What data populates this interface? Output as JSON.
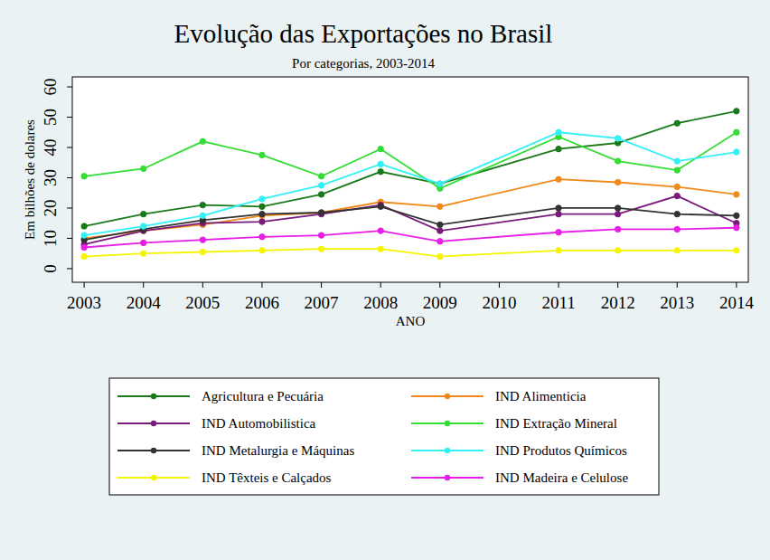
{
  "chart_data": {
    "type": "line",
    "title": "Evolução das Exportações no Brasil",
    "subtitle": "Por categorias, 2003-2014",
    "x_label": "ANO",
    "y_label": "Em bilhões de dolares",
    "x": [
      2003,
      2004,
      2005,
      2006,
      2007,
      2008,
      2009,
      2011,
      2012,
      2013,
      2014
    ],
    "xlim": [
      2002.8,
      2014.2
    ],
    "xticks": [
      2003,
      2004,
      2005,
      2006,
      2007,
      2008,
      2009,
      2010,
      2011,
      2012,
      2013,
      2014
    ],
    "ylim": [
      -4.5,
      63.3
    ],
    "yticks": [
      0,
      10,
      20,
      30,
      40,
      50,
      60
    ],
    "grid": false,
    "legend": "bottom",
    "marker": "circle",
    "line_style": "solid",
    "series": [
      {
        "name": "Agricultura e Pecuária",
        "color": "#1a7a1a",
        "values": [
          14,
          18,
          21,
          20.5,
          24.5,
          32,
          28,
          39.5,
          41.5,
          48,
          52
        ]
      },
      {
        "name": "IND Alimenticia",
        "color": "#f08a1c",
        "values": [
          10,
          12.5,
          14.5,
          17.5,
          18.5,
          22,
          20.5,
          29.5,
          28.5,
          27,
          24.5
        ]
      },
      {
        "name": "IND Automobilistica",
        "color": "#7a1a7a",
        "values": [
          8,
          12.5,
          15,
          15.5,
          18,
          21,
          12.5,
          18,
          18,
          24,
          15
        ]
      },
      {
        "name": "IND Extração Mineral",
        "color": "#33dd33",
        "values": [
          30.5,
          33,
          42,
          37.5,
          30.5,
          39.5,
          26.5,
          43.5,
          35.5,
          32.5,
          45
        ]
      },
      {
        "name": "IND Metalurgia e Máquinas",
        "color": "#333333",
        "values": [
          9.5,
          13,
          16,
          18,
          18.5,
          20.5,
          14.5,
          20,
          20,
          18,
          17.5
        ]
      },
      {
        "name": "IND Produtos Químicos",
        "color": "#33f0f5",
        "values": [
          11,
          14,
          17.5,
          23,
          27.5,
          34.5,
          28,
          45,
          43,
          35.5,
          38.5
        ]
      },
      {
        "name": "IND Têxteis e Calçados",
        "color": "#f5f500",
        "values": [
          4,
          5,
          5.5,
          6,
          6.5,
          6.5,
          4,
          6,
          6,
          6,
          6
        ]
      },
      {
        "name": "IND Madeira e Celulose",
        "color": "#e61ee6",
        "values": [
          7,
          8.5,
          9.5,
          10.5,
          11,
          12.5,
          9,
          12,
          13,
          13,
          13.5
        ]
      }
    ]
  }
}
